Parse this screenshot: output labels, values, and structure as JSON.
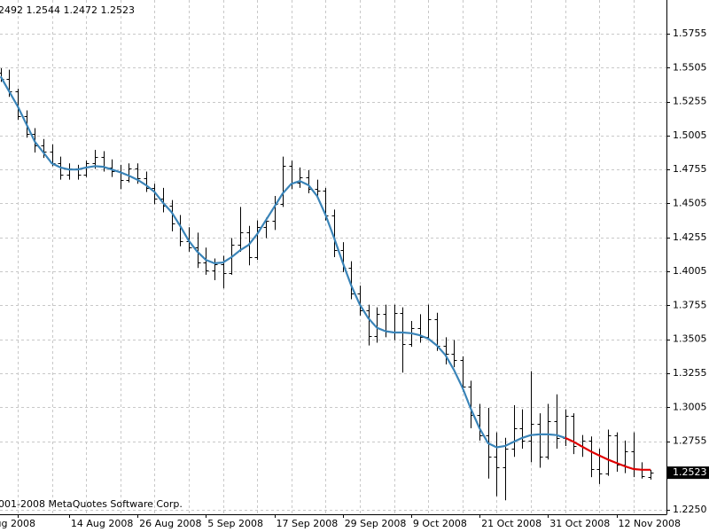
{
  "chart_data": {
    "type": "ohlc",
    "header": "2492 1.2544 1.2472 1.2523",
    "copyright": "001-2008 MetaQuotes Software Corp.",
    "categories": [
      null,
      null,
      "ug 2008",
      null,
      null,
      null,
      null,
      null,
      "14 Aug 2008",
      null,
      null,
      null,
      null,
      null,
      null,
      null,
      "26 Aug 2008",
      null,
      null,
      null,
      null,
      null,
      null,
      null,
      "5 Sep 2008",
      null,
      null,
      null,
      null,
      null,
      null,
      null,
      "17 Sep 2008",
      null,
      null,
      null,
      null,
      null,
      null,
      null,
      "29 Sep 2008",
      null,
      null,
      null,
      null,
      null,
      null,
      null,
      "9 Oct 2008",
      null,
      null,
      null,
      null,
      null,
      null,
      null,
      "21 Oct 2008",
      null,
      null,
      null,
      null,
      null,
      null,
      null,
      "31 Oct 2008",
      null,
      null,
      null,
      null,
      null,
      null,
      null,
      "12 Nov 2008",
      null,
      null,
      null,
      null
    ],
    "open": [
      1.547,
      1.542,
      1.533,
      1.515,
      1.502,
      1.493,
      1.489,
      1.48,
      1.472,
      1.476,
      1.472,
      1.48,
      1.485,
      1.477,
      1.474,
      1.468,
      1.476,
      1.469,
      1.462,
      1.454,
      1.449,
      1.436,
      1.423,
      1.418,
      1.407,
      1.401,
      1.406,
      1.399,
      1.42,
      1.429,
      1.411,
      1.433,
      1.438,
      1.45,
      1.478,
      1.466,
      1.47,
      1.461,
      1.46,
      1.442,
      1.416,
      1.403,
      1.384,
      1.372,
      1.353,
      1.369,
      1.356,
      1.37,
      1.347,
      1.359,
      1.352,
      1.365,
      1.346,
      1.34,
      1.335,
      1.316,
      1.295,
      1.28,
      1.264,
      1.256,
      1.27,
      1.285,
      1.276,
      1.288,
      1.264,
      1.29,
      1.278,
      1.294,
      1.272,
      1.276,
      1.255,
      1.252,
      1.28,
      1.258,
      1.268,
      1.255,
      1.2492
    ],
    "high": [
      1.55,
      1.549,
      1.535,
      1.519,
      1.506,
      1.498,
      1.494,
      1.485,
      1.48,
      1.479,
      1.482,
      1.49,
      1.489,
      1.483,
      1.479,
      1.48,
      1.48,
      1.474,
      1.465,
      1.462,
      1.453,
      1.442,
      1.433,
      1.429,
      1.418,
      1.41,
      1.412,
      1.425,
      1.448,
      1.434,
      1.438,
      1.44,
      1.456,
      1.485,
      1.482,
      1.477,
      1.475,
      1.468,
      1.462,
      1.446,
      1.422,
      1.408,
      1.39,
      1.376,
      1.374,
      1.376,
      1.376,
      1.374,
      1.364,
      1.369,
      1.376,
      1.37,
      1.352,
      1.35,
      1.338,
      1.32,
      1.303,
      1.3,
      1.282,
      1.278,
      1.302,
      1.299,
      1.327,
      1.296,
      1.303,
      1.31,
      1.299,
      1.296,
      1.28,
      1.279,
      1.27,
      1.284,
      1.282,
      1.276,
      1.282,
      1.26,
      1.2544
    ],
    "low": [
      1.54,
      1.529,
      1.512,
      1.499,
      1.488,
      1.484,
      1.478,
      1.468,
      1.468,
      1.468,
      1.47,
      1.476,
      1.474,
      1.47,
      1.461,
      1.466,
      1.465,
      1.459,
      1.45,
      1.444,
      1.43,
      1.419,
      1.415,
      1.403,
      1.398,
      1.394,
      1.388,
      1.398,
      1.415,
      1.405,
      1.409,
      1.425,
      1.431,
      1.448,
      1.461,
      1.462,
      1.458,
      1.455,
      1.438,
      1.411,
      1.4,
      1.38,
      1.368,
      1.346,
      1.348,
      1.352,
      1.35,
      1.326,
      1.345,
      1.348,
      1.35,
      1.342,
      1.332,
      1.33,
      1.312,
      1.285,
      1.276,
      1.248,
      1.235,
      1.232,
      1.264,
      1.27,
      1.26,
      1.256,
      1.262,
      1.27,
      1.272,
      1.266,
      1.264,
      1.249,
      1.244,
      1.25,
      1.253,
      1.252,
      1.249,
      1.248,
      1.2472
    ],
    "close": [
      1.542,
      1.533,
      1.515,
      1.502,
      1.493,
      1.489,
      1.48,
      1.472,
      1.476,
      1.472,
      1.48,
      1.485,
      1.477,
      1.474,
      1.468,
      1.476,
      1.469,
      1.462,
      1.454,
      1.449,
      1.436,
      1.423,
      1.418,
      1.407,
      1.401,
      1.406,
      1.399,
      1.42,
      1.429,
      1.411,
      1.433,
      1.438,
      1.45,
      1.478,
      1.466,
      1.47,
      1.461,
      1.46,
      1.442,
      1.416,
      1.403,
      1.384,
      1.372,
      1.353,
      1.369,
      1.356,
      1.37,
      1.347,
      1.359,
      1.352,
      1.365,
      1.346,
      1.34,
      1.335,
      1.316,
      1.295,
      1.28,
      1.264,
      1.256,
      1.27,
      1.285,
      1.276,
      1.288,
      1.264,
      1.29,
      1.278,
      1.294,
      1.272,
      1.276,
      1.255,
      1.252,
      1.28,
      1.258,
      1.268,
      1.255,
      1.25,
      1.2523
    ],
    "bar_color": "#000000",
    "series": [
      {
        "color": "#3a84b8",
        "values": [
          1.544,
          1.533,
          1.522,
          1.509,
          1.496,
          1.488,
          1.48,
          1.477,
          1.4755,
          1.4755,
          1.477,
          1.478,
          1.4775,
          1.4755,
          1.4735,
          1.471,
          1.468,
          1.464,
          1.459,
          1.451,
          1.444,
          1.434,
          1.423,
          1.415,
          1.409,
          1.4065,
          1.407,
          1.411,
          1.416,
          1.42,
          1.428,
          1.438,
          1.448,
          1.458,
          1.465,
          1.467,
          1.464,
          1.456,
          1.442,
          1.425,
          1.407,
          1.39,
          1.376,
          1.366,
          1.359,
          1.3565,
          1.3555,
          1.3555,
          1.355,
          1.3535,
          1.351,
          1.346,
          1.339,
          1.328,
          1.315,
          1.299,
          1.285,
          1.274,
          1.271,
          1.272,
          1.275,
          1.278,
          1.28,
          1.2805,
          1.2805,
          1.28,
          1.278,
          null,
          null,
          null,
          null,
          null,
          null,
          null,
          null,
          null,
          null
        ]
      },
      {
        "color": "#e00000",
        "values": [
          null,
          null,
          null,
          null,
          null,
          null,
          null,
          null,
          null,
          null,
          null,
          null,
          null,
          null,
          null,
          null,
          null,
          null,
          null,
          null,
          null,
          null,
          null,
          null,
          null,
          null,
          null,
          null,
          null,
          null,
          null,
          null,
          null,
          null,
          null,
          null,
          null,
          null,
          null,
          null,
          null,
          null,
          null,
          null,
          null,
          null,
          null,
          null,
          null,
          null,
          null,
          null,
          null,
          null,
          null,
          null,
          null,
          null,
          null,
          null,
          null,
          null,
          null,
          null,
          null,
          null,
          1.278,
          1.275,
          1.2715,
          1.268,
          1.265,
          1.262,
          1.2595,
          1.257,
          1.255,
          1.2545,
          1.2545
        ]
      }
    ],
    "ylim": [
      1.2217,
      1.6003
    ],
    "yticks": [
      1.5755,
      1.5505,
      1.5255,
      1.5005,
      1.4755,
      1.4505,
      1.4255,
      1.4005,
      1.3755,
      1.3505,
      1.3255,
      1.3005,
      1.2755,
      {
        "value": 1.225,
        "label": "1.2250"
      }
    ],
    "grid": true
  }
}
